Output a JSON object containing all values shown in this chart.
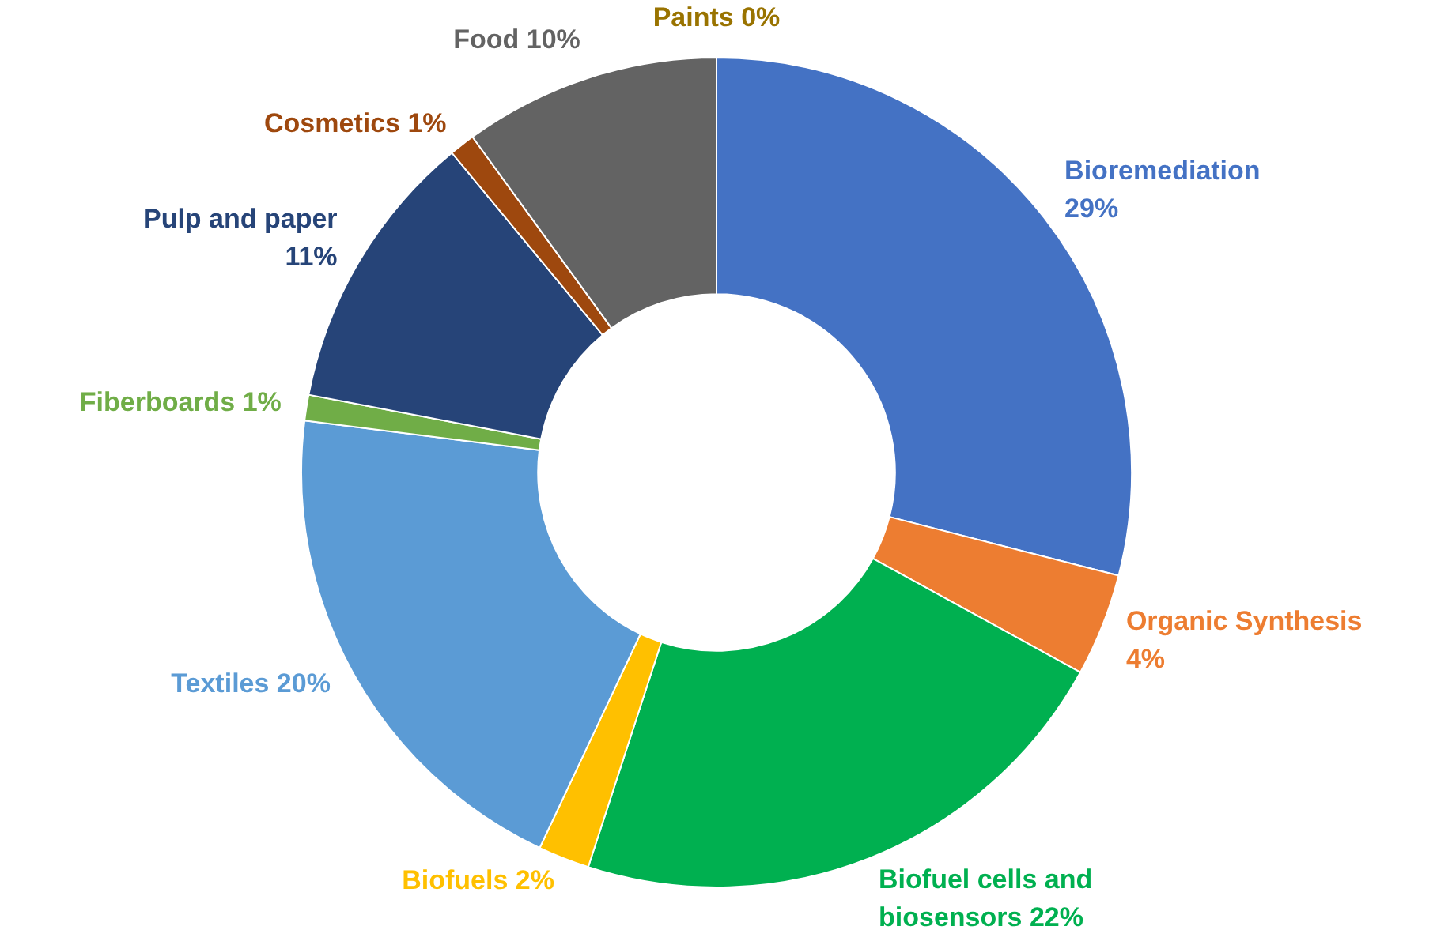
{
  "chart_data": {
    "type": "donut",
    "categories": [
      "Bioremediation",
      "Organic Synthesis",
      "Biofuel cells and biosensors",
      "Biofuels",
      "Textiles",
      "Fiberboards",
      "Pulp and paper",
      "Cosmetics",
      "Food",
      "Paints"
    ],
    "values": [
      29,
      4,
      22,
      2,
      20,
      1,
      11,
      1,
      10,
      0
    ],
    "colors": [
      "#4472c4",
      "#ed7d31",
      "#00b050",
      "#ffc000",
      "#5b9bd5",
      "#70ad47",
      "#264478",
      "#9e480e",
      "#636363",
      "#997300"
    ],
    "value_labels": [
      "29%",
      "4%",
      "22%",
      "2%",
      "20%",
      "1%",
      "11%",
      "1%",
      "10%",
      "0%"
    ],
    "legend": false
  }
}
